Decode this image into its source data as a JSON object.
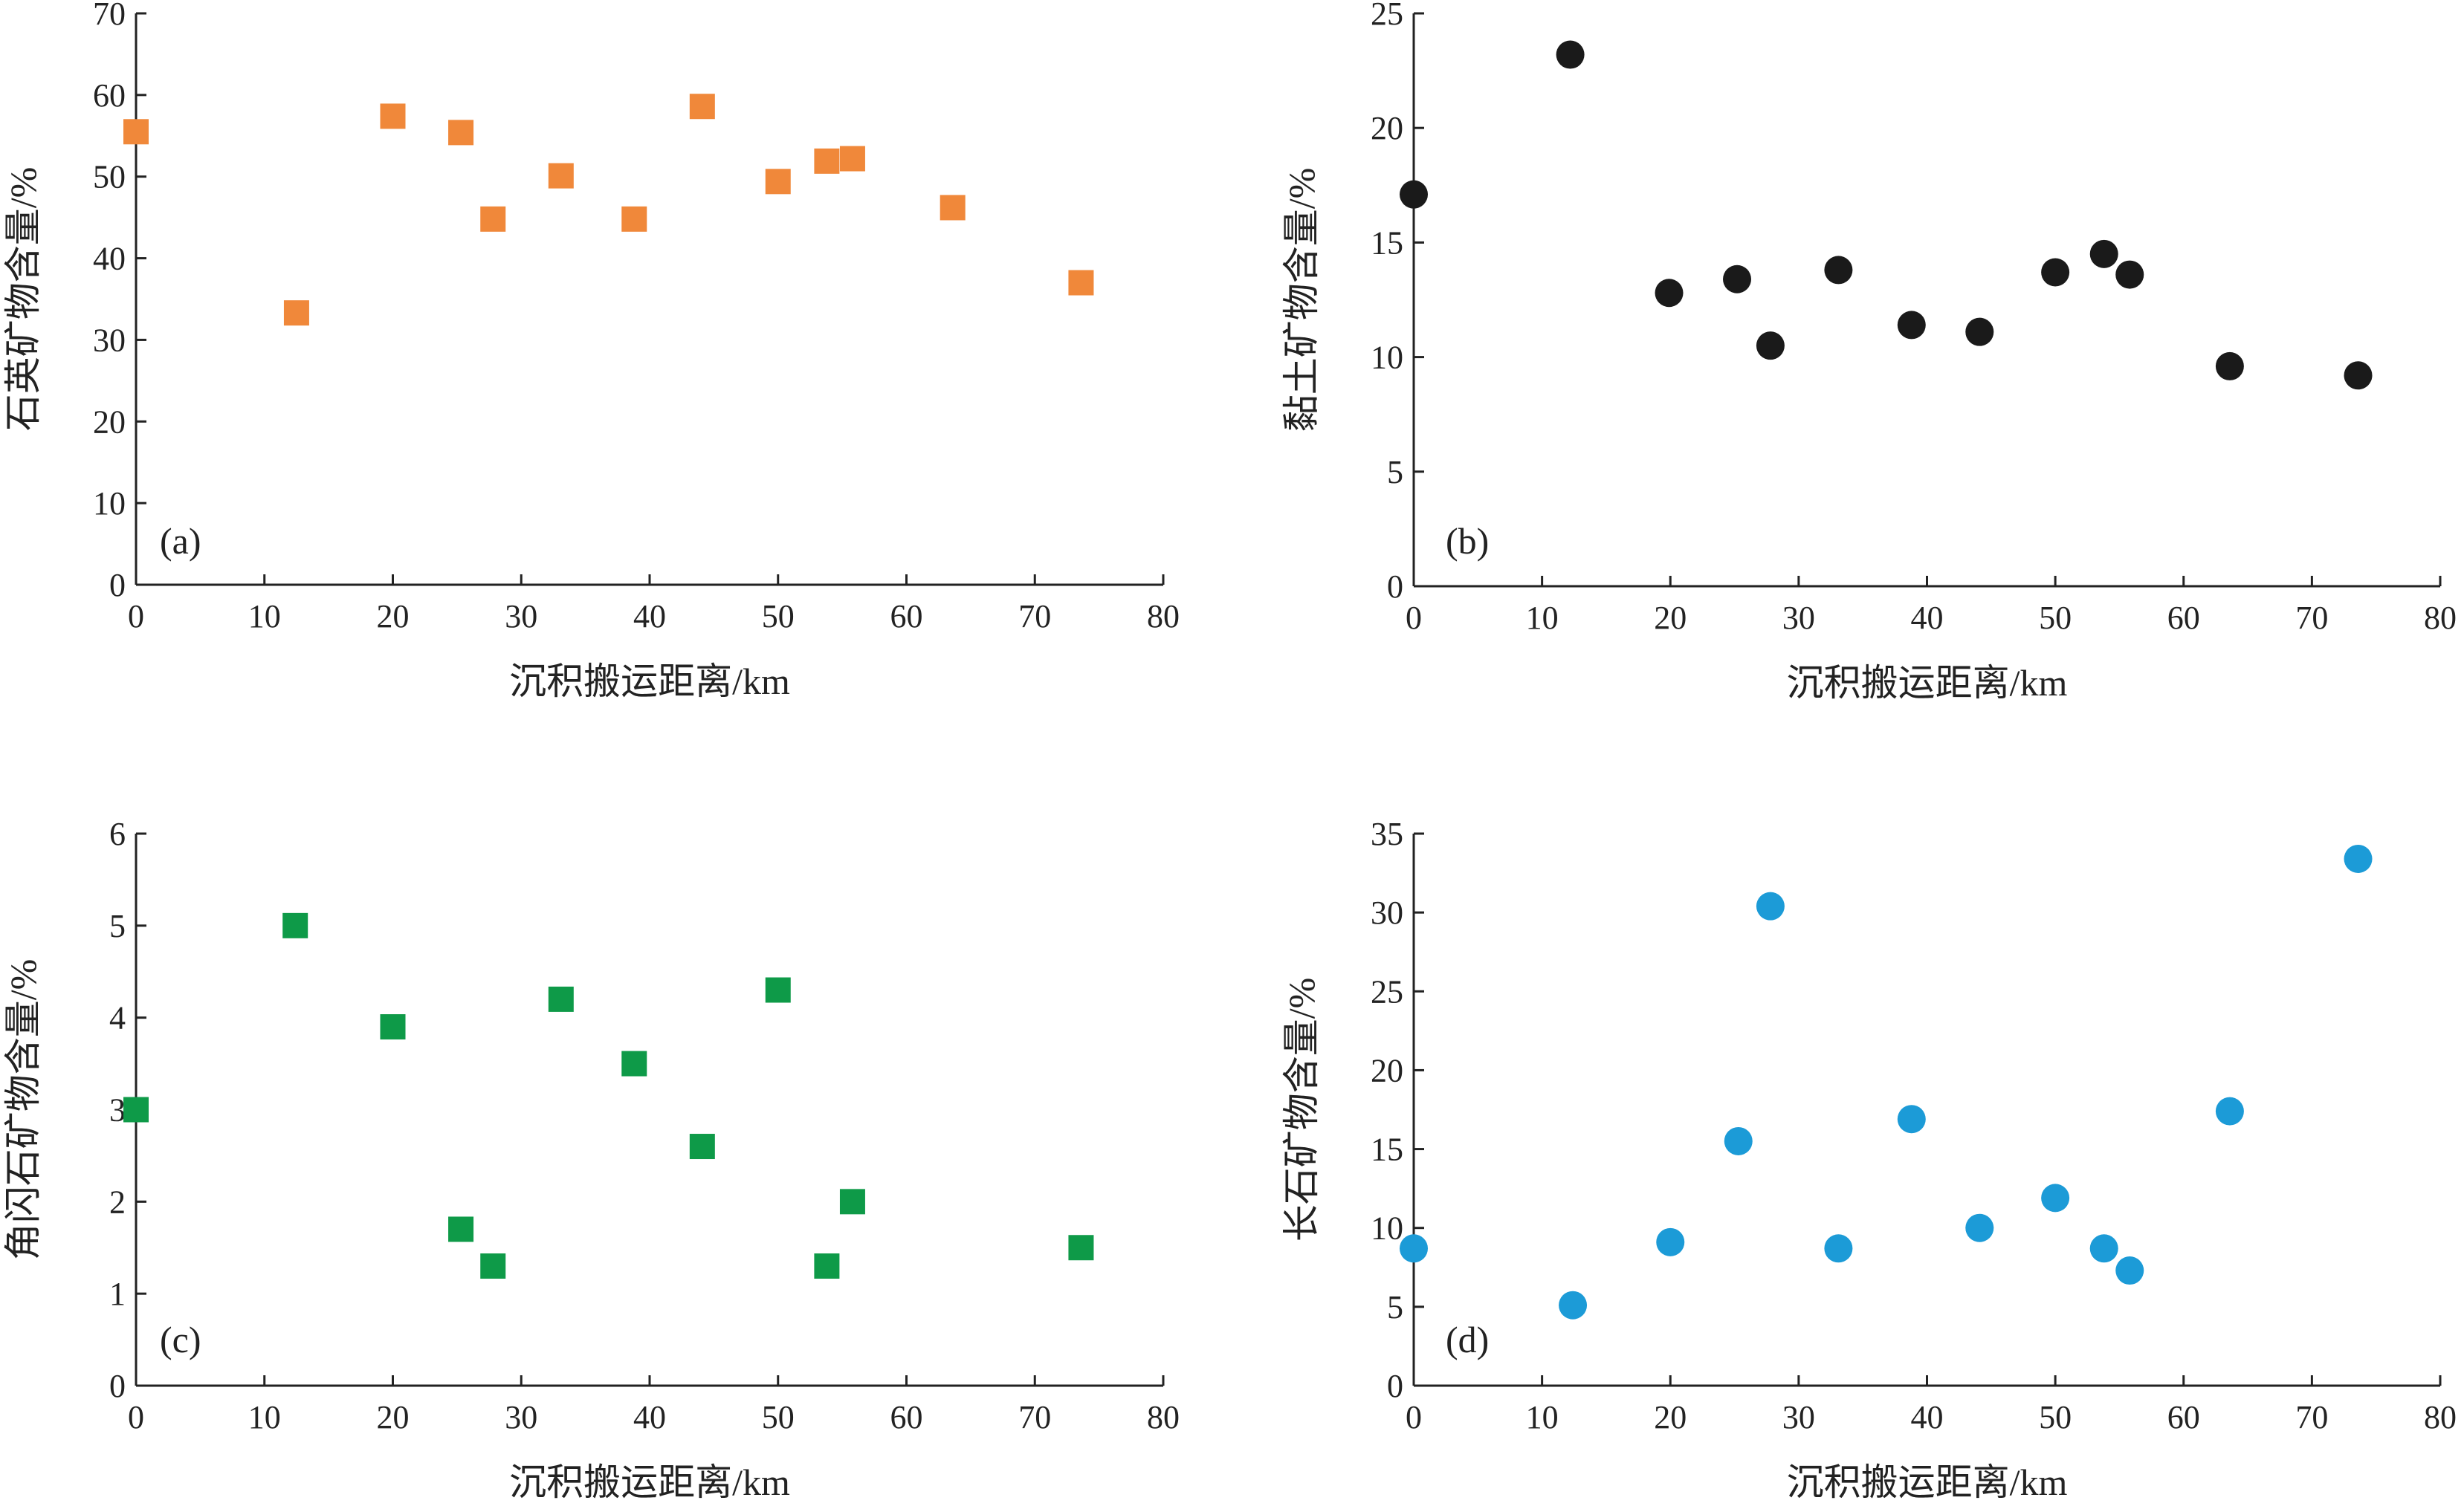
{
  "chart_data": [
    {
      "panel": "(a)",
      "type": "scatter",
      "xlabel": "沉积搬运距离/km",
      "ylabel": "石英矿物含量/%",
      "xlim": [
        0,
        80
      ],
      "ylim": [
        0,
        70
      ],
      "xticks": [
        0,
        10,
        20,
        30,
        40,
        50,
        60,
        70,
        80
      ],
      "yticks": [
        0,
        10,
        20,
        30,
        40,
        50,
        60,
        70
      ],
      "marker": "square",
      "color": "#F0883A",
      "grid": false,
      "x": [
        0,
        12.5,
        20,
        25.3,
        27.8,
        33.1,
        38.8,
        44.1,
        50,
        53.8,
        55.8,
        63.6,
        73.6
      ],
      "y": [
        55.5,
        33.3,
        57.4,
        55.4,
        44.8,
        50.1,
        44.8,
        58.6,
        49.4,
        51.9,
        52.2,
        46.2,
        37
      ]
    },
    {
      "panel": "(b)",
      "type": "scatter",
      "xlabel": "沉积搬运距离/km",
      "ylabel": "黏土矿物含量/%",
      "xlim": [
        0,
        80
      ],
      "ylim": [
        0,
        25
      ],
      "xticks": [
        0,
        10,
        20,
        30,
        40,
        50,
        60,
        70,
        80
      ],
      "yticks": [
        0,
        5,
        10,
        15,
        20,
        25
      ],
      "marker": "circle",
      "color": "#1A1A1A",
      "grid": false,
      "x": [
        0,
        12.2,
        19.9,
        25.2,
        27.8,
        33.1,
        38.8,
        44.1,
        50,
        53.8,
        55.8,
        63.6,
        73.6
      ],
      "y": [
        17.1,
        23.2,
        12.8,
        13.4,
        10.5,
        13.8,
        11.4,
        11.1,
        13.7,
        14.5,
        13.6,
        9.6,
        9.2
      ]
    },
    {
      "panel": "(c)",
      "type": "scatter",
      "xlabel": "沉积搬运距离/km",
      "ylabel": "角闪石矿物含量/%",
      "xlim": [
        0,
        80
      ],
      "ylim": [
        0,
        6
      ],
      "xticks": [
        0,
        10,
        20,
        30,
        40,
        50,
        60,
        70,
        80
      ],
      "yticks": [
        0,
        1,
        2,
        3,
        4,
        5,
        6
      ],
      "marker": "square",
      "color": "#0E9A48",
      "grid": false,
      "x": [
        0,
        12.4,
        20,
        25.3,
        27.8,
        33.1,
        38.8,
        44.1,
        50,
        53.8,
        55.8,
        73.6
      ],
      "y": [
        3,
        5,
        3.9,
        1.7,
        1.3,
        4.2,
        3.5,
        2.6,
        4.3,
        1.3,
        2,
        1.5
      ]
    },
    {
      "panel": "(d)",
      "type": "scatter",
      "xlabel": "沉积搬运距离/km",
      "ylabel": "长石矿物含量/%",
      "xlim": [
        0,
        80
      ],
      "ylim": [
        0,
        35
      ],
      "xticks": [
        0,
        10,
        20,
        30,
        40,
        50,
        60,
        70,
        80
      ],
      "yticks": [
        0,
        5,
        10,
        15,
        20,
        25,
        30,
        35
      ],
      "marker": "circle",
      "color": "#1C9BD7",
      "grid": false,
      "x": [
        0,
        12.4,
        20,
        25.3,
        27.8,
        33.1,
        38.8,
        44.1,
        50,
        53.8,
        55.8,
        63.6,
        73.6
      ],
      "y": [
        8.7,
        5.1,
        9.1,
        15.5,
        30.4,
        8.7,
        16.9,
        10,
        11.9,
        8.7,
        7.3,
        17.4,
        33.4
      ]
    }
  ]
}
